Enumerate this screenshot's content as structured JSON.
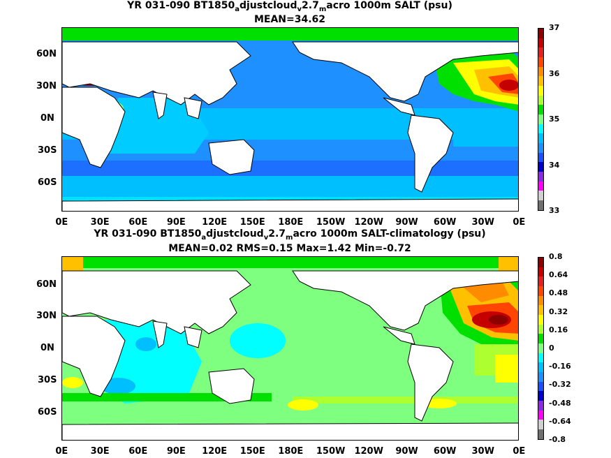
{
  "panel1": {
    "title_pre": "YR 031-090 BT1850",
    "title_sub1": "a",
    "title_mid": "djustcloud",
    "title_sub2": "v",
    "title_mid2": "2.7",
    "title_sub3": "m",
    "title_post": "acro 1000m SALT (psu)",
    "stats": "MEAN=34.62",
    "colorbar": {
      "labels": [
        "37",
        "36",
        "35",
        "34",
        "33"
      ],
      "colors": [
        "#8b0000",
        "#c40000",
        "#e52020",
        "#ff4500",
        "#ff8c00",
        "#ffc000",
        "#ffff00",
        "#adff2f",
        "#00e000",
        "#7fff7f",
        "#00ffff",
        "#00bfff",
        "#1e90ff",
        "#1c4fff",
        "#0000cd",
        "#8a2be2",
        "#ff00ff",
        "#d0d0d0",
        "#707070"
      ]
    }
  },
  "panel2": {
    "title_pre": "YR 031-090 BT1850",
    "title_sub1": "a",
    "title_mid": "djustcloud",
    "title_sub2": "v",
    "title_mid2": "2.7",
    "title_sub3": "m",
    "title_post": "acro 1000m SALT-climatology (psu)",
    "stats": "MEAN=0.02   RMS=0.15   Max=1.42   Min=-0.72",
    "colorbar": {
      "labels": [
        "0.8",
        "0.64",
        "0.48",
        "0.32",
        "0.16",
        "0",
        "-0.16",
        "-0.32",
        "-0.48",
        "-0.64",
        "-0.8"
      ],
      "colors": [
        "#8b0000",
        "#c40000",
        "#e52020",
        "#ff4500",
        "#ff8c00",
        "#ffc000",
        "#ffff00",
        "#adff2f",
        "#00e000",
        "#7fff7f",
        "#00ffff",
        "#00bfff",
        "#1e90ff",
        "#1c4fff",
        "#0000cd",
        "#8a2be2",
        "#ff00ff",
        "#d0d0d0",
        "#707070"
      ]
    }
  },
  "lat_labels": [
    "60N",
    "30N",
    "0N",
    "30S",
    "60S"
  ],
  "lon_labels": [
    "0E",
    "30E",
    "60E",
    "90E",
    "120E",
    "150E",
    "180E",
    "150W",
    "120W",
    "90W",
    "60W",
    "30W",
    "0E"
  ],
  "colors": {
    "land": "#ffffff",
    "coast": "#000000",
    "ocean_p1_base": "#1e90ff",
    "ocean_p2_base": "#7fff7f"
  }
}
